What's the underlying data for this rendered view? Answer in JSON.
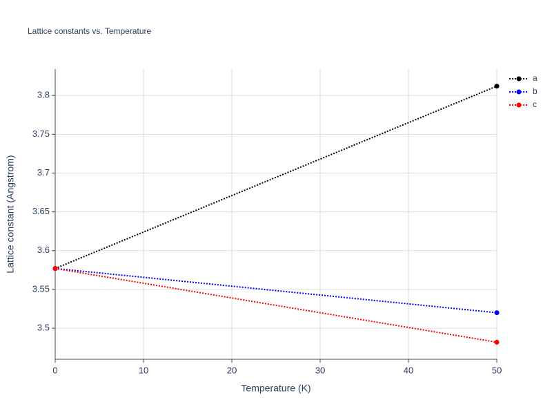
{
  "chart_data": {
    "type": "line",
    "title": "Lattice constants vs. Temperature",
    "x_label": "Temperature (K)",
    "y_label": "Lattice constant (Angstrom)",
    "x": [
      0,
      50
    ],
    "series": [
      {
        "name": "a",
        "color": "#000000",
        "values": [
          3.577,
          3.812
        ]
      },
      {
        "name": "b",
        "color": "#0000ff",
        "values": [
          3.577,
          3.52
        ]
      },
      {
        "name": "c",
        "color": "#ff0000",
        "values": [
          3.577,
          3.482
        ]
      }
    ],
    "xlim": [
      0,
      50
    ],
    "xticks": [
      0,
      10,
      20,
      30,
      40,
      50
    ],
    "ylim": [
      3.46,
      3.834
    ],
    "yticks": [
      3.5,
      3.55,
      3.6,
      3.65,
      3.7,
      3.75,
      3.8
    ],
    "grid": true,
    "legend": "right"
  }
}
